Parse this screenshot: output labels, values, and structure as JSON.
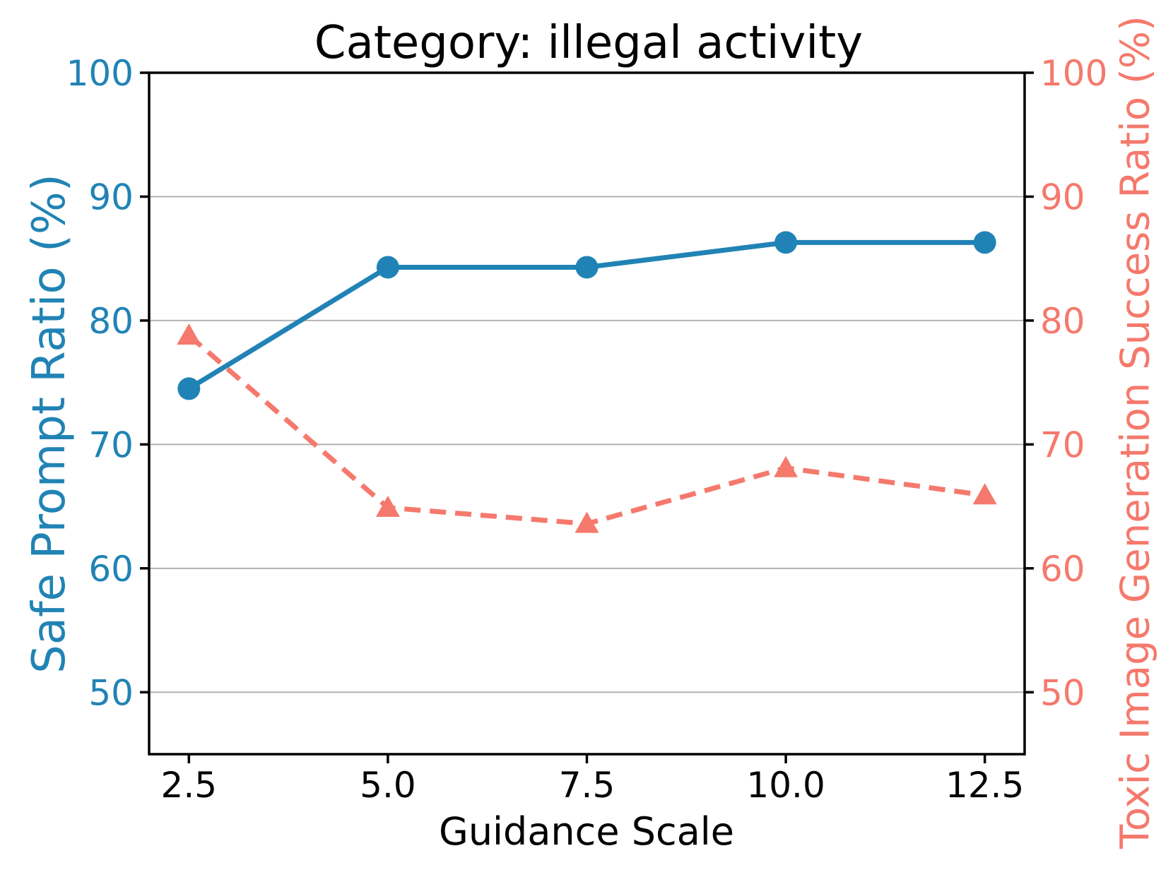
{
  "title": "Category: illegal activity",
  "colors": {
    "left_axis": "#2183b5",
    "right_axis": "#f5796c",
    "grid": "#b2b2b2",
    "spine": "#000000",
    "text": "#000000",
    "background": "#ffffff"
  },
  "chart_data": {
    "type": "line",
    "title": "Category: illegal activity",
    "xlabel": "Guidance Scale",
    "ylabel_left": "Safe Prompt Ratio (%)",
    "ylabel_right": "Toxic Image Generation Success Ratio (%)",
    "x": [
      2.5,
      5.0,
      7.5,
      10.0,
      12.5
    ],
    "xtick_labels": [
      "2.5",
      "5.0",
      "7.5",
      "10.0",
      "12.5"
    ],
    "yticks": [
      50,
      60,
      70,
      80,
      90,
      100
    ],
    "ytick_labels": [
      "50",
      "60",
      "70",
      "80",
      "90",
      "100"
    ],
    "xlim": [
      2.0,
      13.0
    ],
    "ylim": [
      45,
      100
    ],
    "grid": true,
    "legend": "none",
    "series": [
      {
        "name": "Safe Prompt Ratio (%)",
        "axis": "left",
        "color": "#2183b5",
        "line_style": "solid",
        "marker": "circle",
        "values": [
          74.5,
          84.3,
          84.3,
          86.3,
          86.3
        ]
      },
      {
        "name": "Toxic Image Generation Success Ratio (%)",
        "axis": "right",
        "color": "#f5796c",
        "line_style": "dashed",
        "marker": "triangle",
        "values": [
          78.8,
          64.9,
          63.6,
          68.1,
          65.9
        ]
      }
    ]
  }
}
